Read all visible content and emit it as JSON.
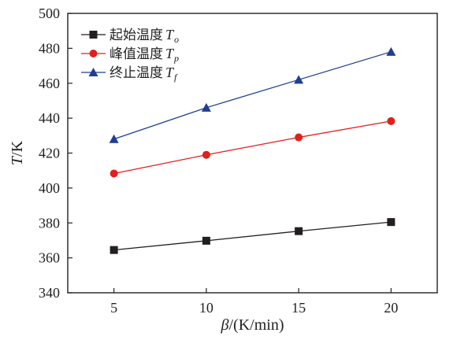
{
  "chart_data": {
    "type": "line",
    "xlabel": {
      "symbol": "β",
      "unit": "/(K/min)"
    },
    "ylabel": {
      "symbol": "T",
      "unit": "/K"
    },
    "x": [
      5,
      10,
      15,
      20
    ],
    "xticks": [
      5,
      10,
      15,
      20
    ],
    "xlim": [
      2.5,
      22.5
    ],
    "ylim": [
      340,
      500
    ],
    "yticks": [
      340,
      360,
      380,
      400,
      420,
      440,
      460,
      480,
      500
    ],
    "grid": false,
    "legend_position": "top-left",
    "series": [
      {
        "name_prefix": "起始温度",
        "symbol": "T",
        "subscript": "o",
        "marker": "square",
        "color": "#231f20",
        "values": [
          364.5,
          369.8,
          375.3,
          380.5
        ]
      },
      {
        "name_prefix": "峰值温度",
        "symbol": "T",
        "subscript": "p",
        "marker": "circle",
        "color": "#e0201c",
        "values": [
          408.3,
          419.0,
          429.0,
          438.3
        ]
      },
      {
        "name_prefix": "终止温度",
        "symbol": "T",
        "subscript": "f",
        "marker": "triangle",
        "color": "#1f3e92",
        "values": [
          428.0,
          446.0,
          462.0,
          478.0
        ]
      }
    ]
  }
}
